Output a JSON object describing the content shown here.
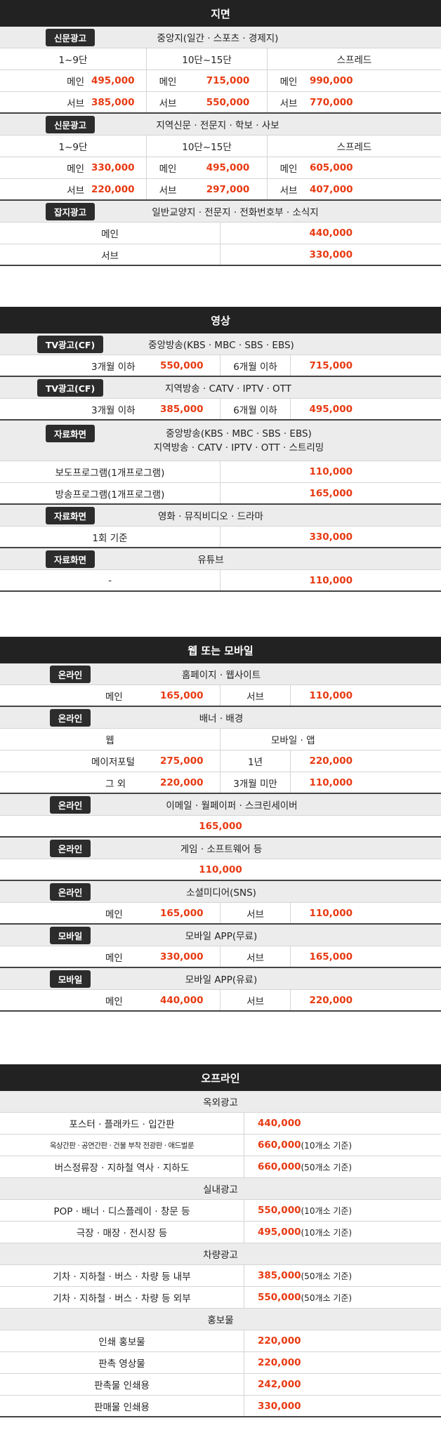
{
  "s1": {
    "title": "지면",
    "b1": {
      "badge": "신문광고",
      "label": "중앙지(일간 · 스포츠 · 경제지)"
    },
    "cols": [
      "1~9단",
      "10단~15단",
      "스프레드"
    ],
    "b1_main": [
      "메인",
      "495,000",
      "메인",
      "715,000",
      "메인",
      "990,000"
    ],
    "b1_sub": [
      "서브",
      "385,000",
      "서브",
      "550,000",
      "서브",
      "770,000"
    ],
    "b2": {
      "badge": "신문광고",
      "label": "지역신문 · 전문지 · 학보 · 사보"
    },
    "b2_main": [
      "메인",
      "330,000",
      "메인",
      "495,000",
      "메인",
      "605,000"
    ],
    "b2_sub": [
      "서브",
      "220,000",
      "서브",
      "297,000",
      "서브",
      "407,000"
    ],
    "b3": {
      "badge": "잡지광고",
      "label": "일반교양지 · 전문지 · 전화번호부 · 소식지"
    },
    "b3_rows": [
      [
        "메인",
        "440,000"
      ],
      [
        "서브",
        "330,000"
      ]
    ]
  },
  "s2": {
    "title": "영상",
    "b1": {
      "badge": "TV광고(CF)",
      "label": "중앙방송(KBS · MBC · SBS · EBS)"
    },
    "b1_row": [
      "3개월 이하",
      "550,000",
      "6개월 이하",
      "715,000"
    ],
    "b2": {
      "badge": "TV광고(CF)",
      "label": "지역방송 · CATV · IPTV · OTT"
    },
    "b2_row": [
      "3개월 이하",
      "385,000",
      "6개월 이하",
      "495,000"
    ],
    "b3": {
      "badge": "자료화면",
      "label1": "중앙방송(KBS · MBC · SBS · EBS)",
      "label2": "지역방송 · CATV · IPTV · OTT · 스트리밍"
    },
    "b3_rows": [
      [
        "보도프로그램(1개프로그램)",
        "110,000"
      ],
      [
        "방송프로그램(1개프로그램)",
        "165,000"
      ]
    ],
    "b4": {
      "badge": "자료화면",
      "label": "영화 · 뮤직비디오 · 드라마"
    },
    "b4_row": [
      "1회 기준",
      "330,000"
    ],
    "b5": {
      "badge": "자료화면",
      "label": "유튜브"
    },
    "b5_row": [
      "-",
      "110,000"
    ]
  },
  "s3": {
    "title": "웹 또는 모바일",
    "b1": {
      "badge": "온라인",
      "label": "홈페이지 · 웹사이트"
    },
    "b1_row": [
      "메인",
      "165,000",
      "서브",
      "110,000"
    ],
    "b2": {
      "badge": "온라인",
      "label": "배너 · 배경"
    },
    "b2_head": [
      "웹",
      "모바일 · 앱"
    ],
    "b2_rows": [
      [
        "메이저포털",
        "275,000",
        "1년",
        "220,000"
      ],
      [
        "그 외",
        "220,000",
        "3개월 미만",
        "110,000"
      ]
    ],
    "b3": {
      "badge": "온라인",
      "label": "이메일 · 월페이퍼 · 스크린세이버"
    },
    "b3_price": "165,000",
    "b4": {
      "badge": "온라인",
      "label": "게임 · 소프트웨어 등"
    },
    "b4_price": "110,000",
    "b5": {
      "badge": "온라인",
      "label": "소셜미디어(SNS)"
    },
    "b5_row": [
      "메인",
      "165,000",
      "서브",
      "110,000"
    ],
    "b6": {
      "badge": "모바일",
      "label": "모바일 APP(무료)"
    },
    "b6_row": [
      "메인",
      "330,000",
      "서브",
      "165,000"
    ],
    "b7": {
      "badge": "모바일",
      "label": "모바일 APP(유료)"
    },
    "b7_row": [
      "메인",
      "440,000",
      "서브",
      "220,000"
    ]
  },
  "s4": {
    "title": "오프라인",
    "g1": "옥외광고",
    "g1_rows": [
      {
        "label": "포스터 · 플래카드 · 입간판",
        "price": "440,000",
        "note": ""
      },
      {
        "label": "옥상간판 · 공연간판 · 건물 부착 전광판 · 애드벌룬",
        "price": "660,000",
        "note": "(10개소 기준)"
      },
      {
        "label": "버스정류장 · 지하철 역사 · 지하도",
        "price": "660,000",
        "note": "(50개소 기준)"
      }
    ],
    "g2": "실내광고",
    "g2_rows": [
      {
        "label": "POP · 배너 · 디스플레이 · 창문 등",
        "price": "550,000",
        "note": "(10개소 기준)"
      },
      {
        "label": "극장 · 매장 · 전시장 등",
        "price": "495,000",
        "note": "(10개소 기준)"
      }
    ],
    "g3": "차량광고",
    "g3_rows": [
      {
        "label": "기차 · 지하철 · 버스 · 차량 등 내부",
        "price": "385,000",
        "note": "(50개소 기준)"
      },
      {
        "label": "기차 · 지하철 · 버스 · 차량 등 외부",
        "price": "550,000",
        "note": "(50개소 기준)"
      }
    ],
    "g4": "홍보물",
    "g4_rows": [
      {
        "label": "인쇄 홍보물",
        "price": "220,000",
        "note": ""
      },
      {
        "label": "판촉 영상물",
        "price": "220,000",
        "note": ""
      },
      {
        "label": "판촉물 인쇄용",
        "price": "242,000",
        "note": ""
      },
      {
        "label": "판매물 인쇄용",
        "price": "330,000",
        "note": ""
      }
    ]
  }
}
